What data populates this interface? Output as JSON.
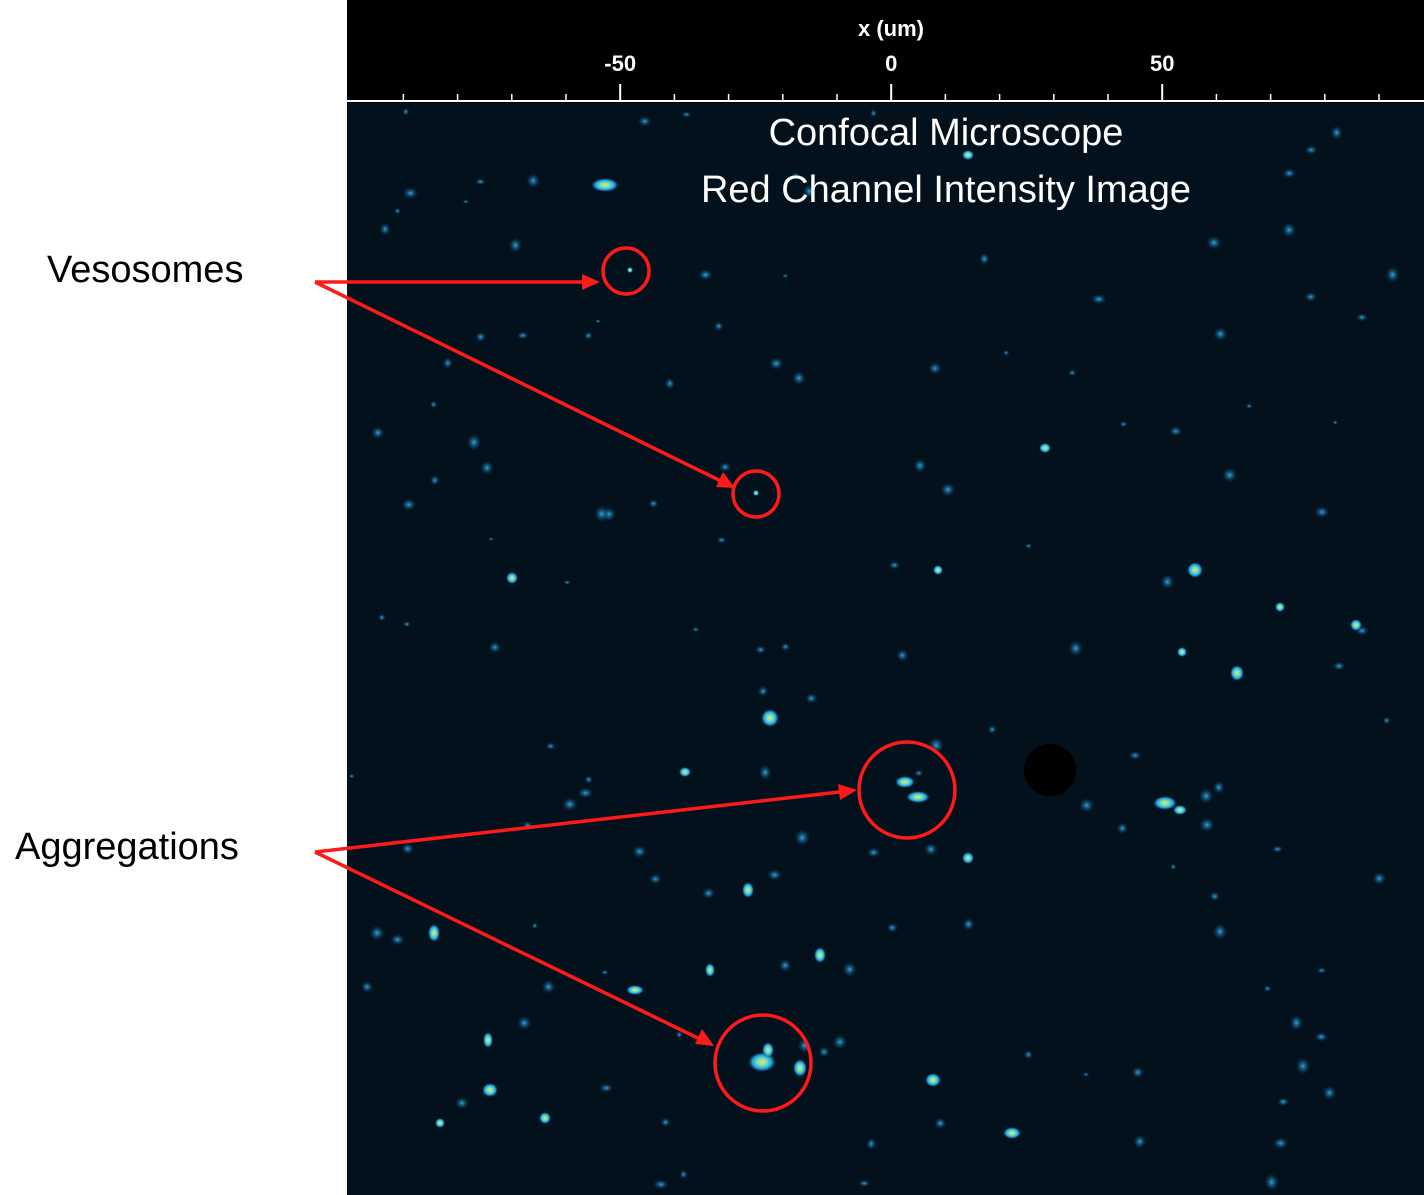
{
  "axis": {
    "label": "x (um)",
    "xlim": [
      -100.4,
      98.3
    ],
    "ticks": [
      -50,
      0,
      50
    ],
    "minor_ticks": [
      -90,
      -80,
      -70,
      -60,
      -40,
      -30,
      -20,
      -10,
      10,
      20,
      30,
      40,
      60,
      70,
      80,
      90
    ]
  },
  "image_title": [
    "Confocal Microscope",
    "Red Channel Intensity Image"
  ],
  "annotations": [
    {
      "label": "Vesosomes"
    },
    {
      "label": "Aggregations"
    }
  ]
}
